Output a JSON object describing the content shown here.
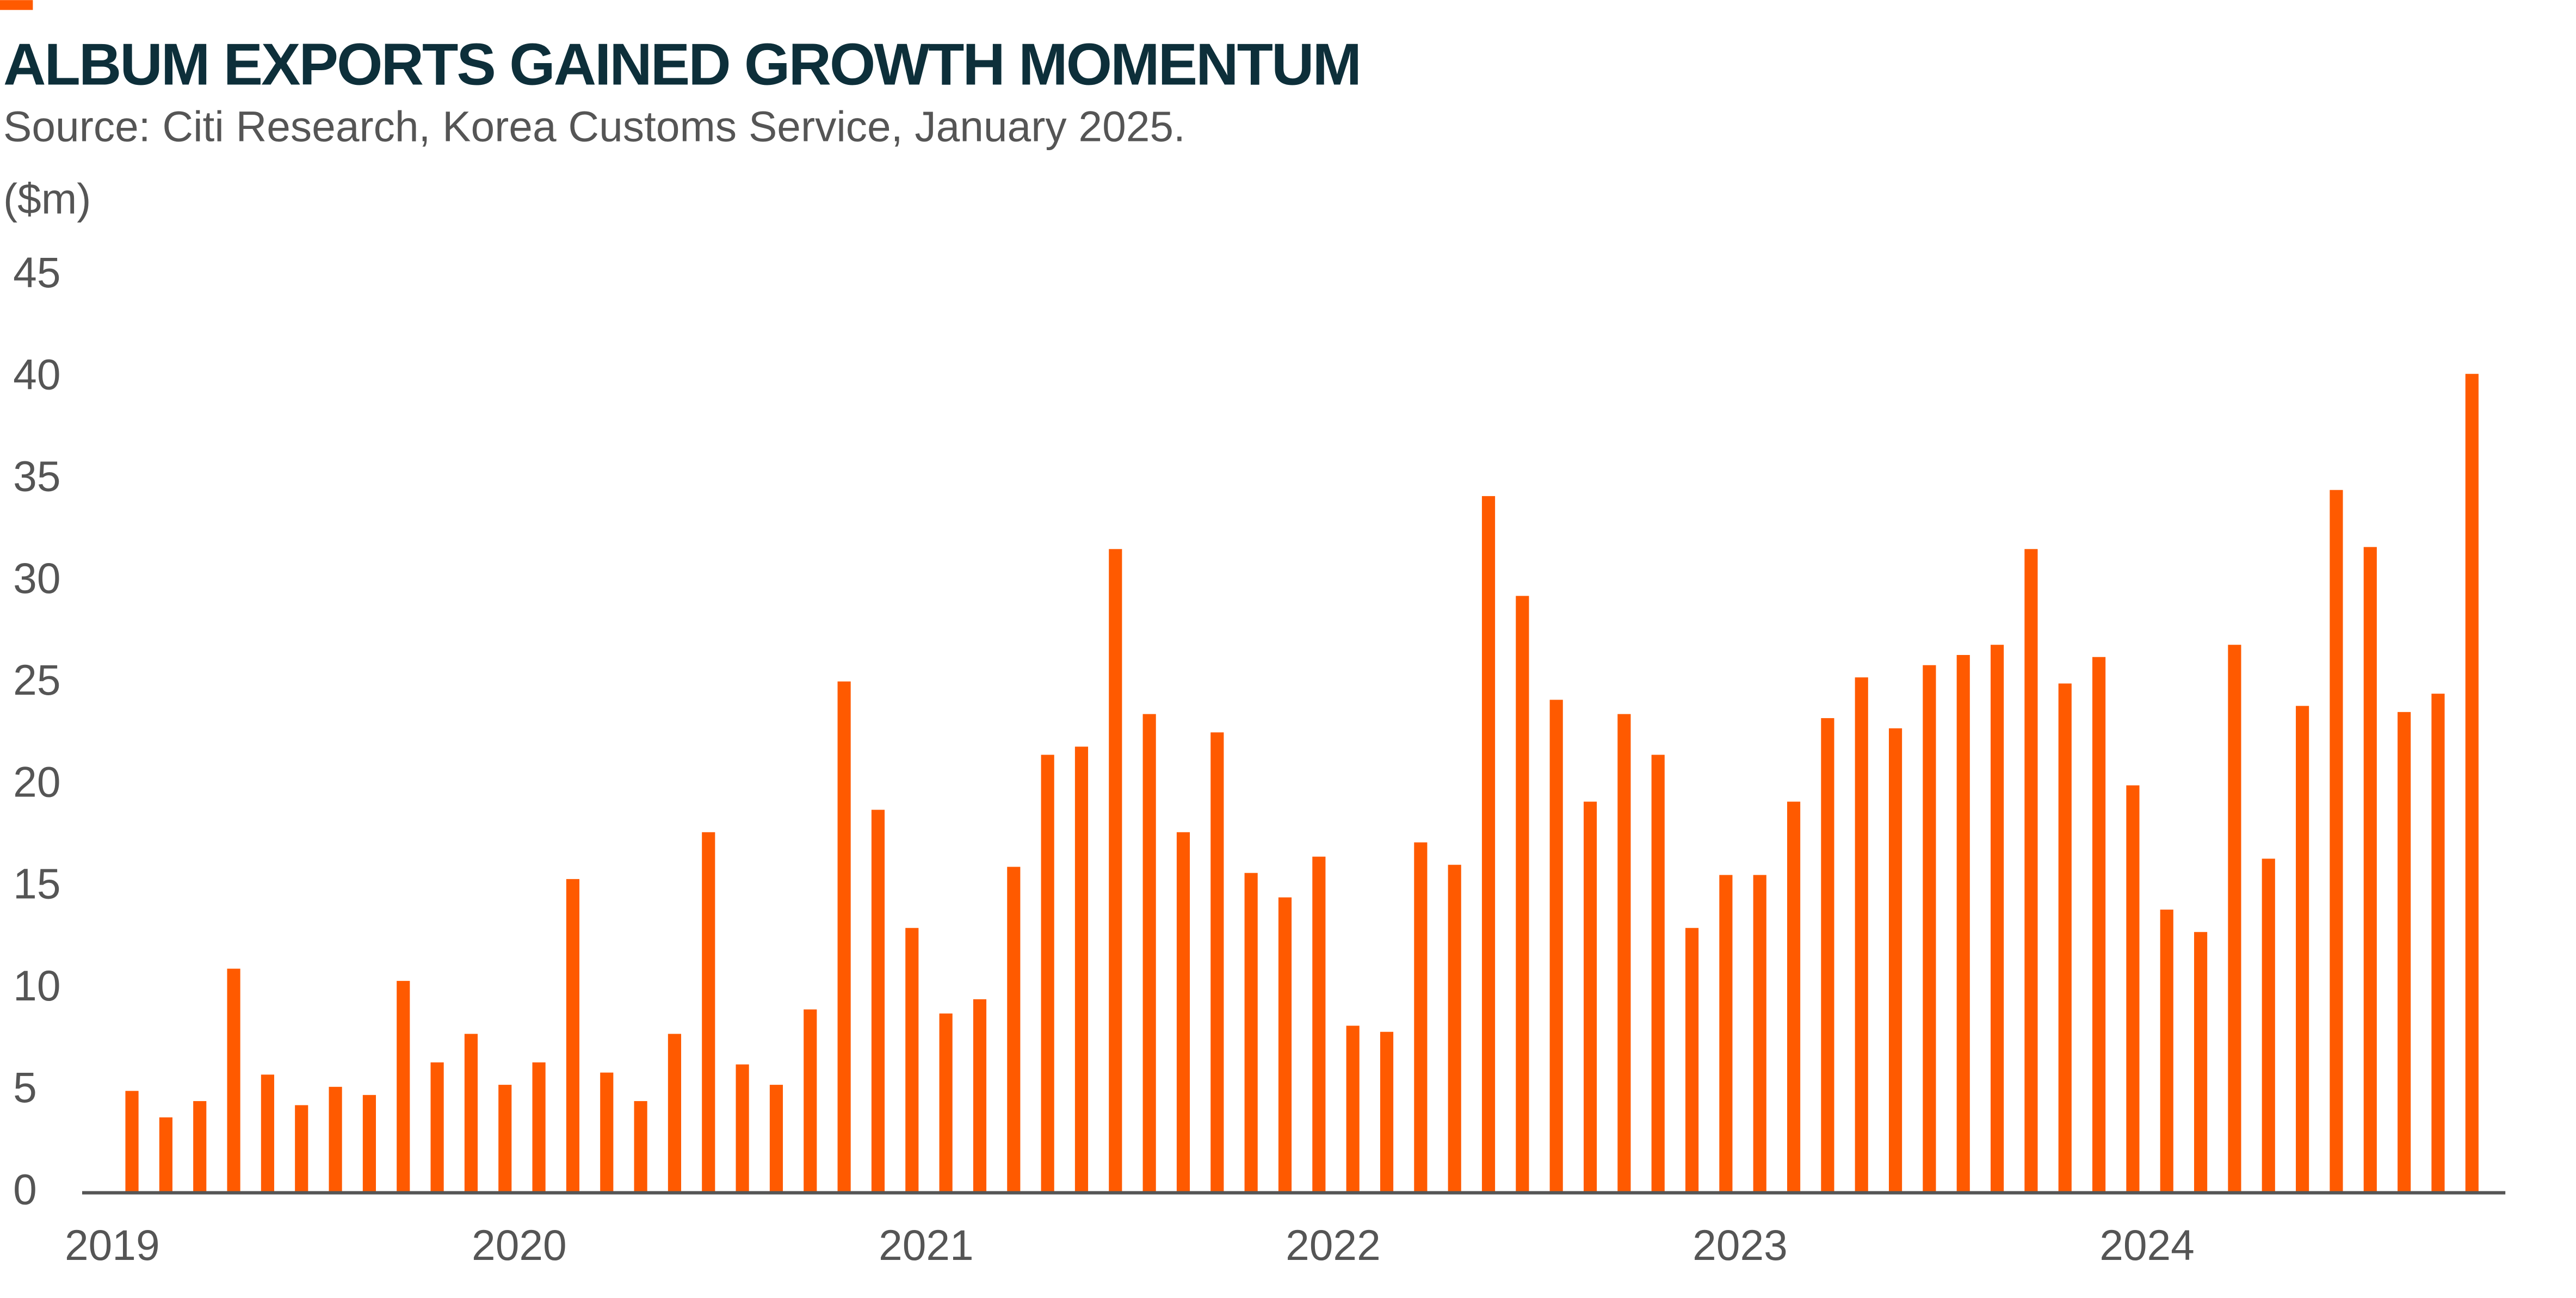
{
  "chart_data": {
    "type": "bar",
    "title": "ALBUM EXPORTS GAINED GROWTH MOMENTUM",
    "subtitle": "Source: Citi Research, Korea Customs Service, January 2025.",
    "y_label": "($m)",
    "categories": [
      "2019",
      null,
      null,
      null,
      null,
      null,
      null,
      null,
      null,
      null,
      null,
      null,
      "2020",
      null,
      null,
      null,
      null,
      null,
      null,
      null,
      null,
      null,
      null,
      null,
      "2021",
      null,
      null,
      null,
      null,
      null,
      null,
      null,
      null,
      null,
      null,
      null,
      "2022",
      null,
      null,
      null,
      null,
      null,
      null,
      null,
      null,
      null,
      null,
      null,
      "2023",
      null,
      null,
      null,
      null,
      null,
      null,
      null,
      null,
      null,
      null,
      null,
      "2024",
      null,
      null,
      null,
      null,
      null,
      null,
      null,
      null,
      null
    ],
    "values": [
      5.0,
      3.7,
      4.5,
      11.0,
      5.8,
      4.3,
      5.2,
      4.8,
      10.4,
      6.4,
      7.8,
      5.3,
      6.4,
      15.4,
      5.9,
      4.5,
      7.8,
      17.7,
      6.3,
      5.3,
      9.0,
      25.1,
      18.8,
      13.0,
      8.8,
      9.5,
      16.0,
      21.5,
      21.9,
      31.6,
      23.5,
      17.7,
      22.6,
      15.7,
      14.5,
      16.5,
      8.2,
      7.9,
      17.2,
      16.1,
      34.2,
      29.3,
      24.2,
      19.2,
      23.5,
      21.5,
      13.0,
      15.6,
      15.6,
      19.2,
      23.3,
      25.3,
      22.8,
      25.9,
      26.4,
      26.9,
      31.6,
      25.0,
      26.3,
      20.0,
      13.9,
      12.8,
      26.9,
      16.4,
      23.9,
      34.5,
      31.7,
      23.6,
      24.5,
      40.2
    ],
    "color": "#ff5a00",
    "ylim": [
      0,
      45
    ],
    "yticks": [
      0,
      5,
      10,
      15,
      20,
      25,
      30,
      35,
      40,
      45
    ],
    "grid": false
  }
}
